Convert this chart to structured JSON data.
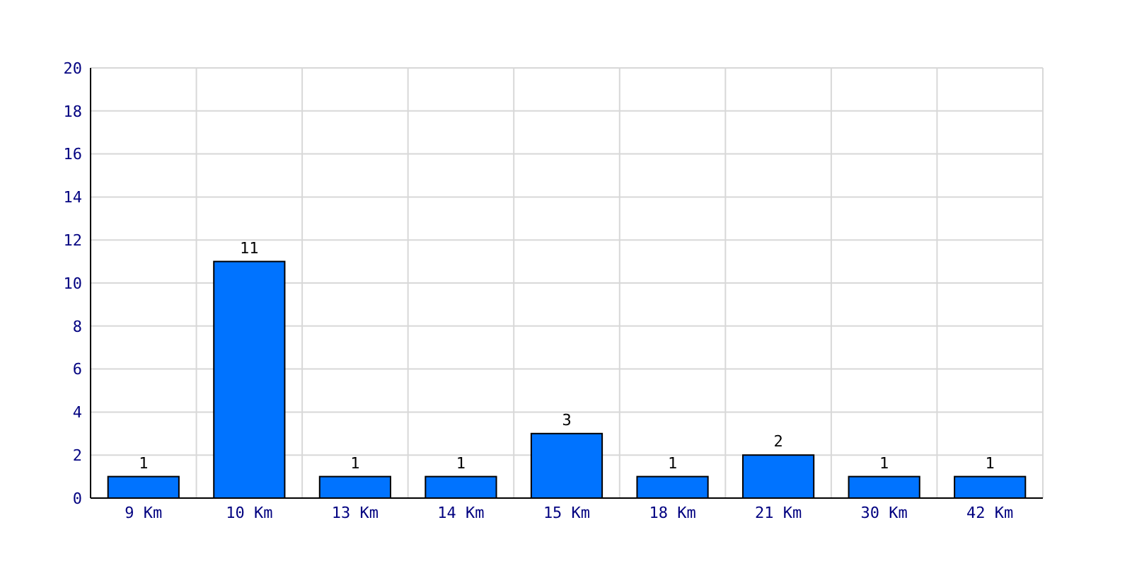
{
  "chart_data": {
    "type": "bar",
    "categories": [
      "9 Km",
      "10 Km",
      "13 Km",
      "14 Km",
      "15 Km",
      "18 Km",
      "21 Km",
      "30 Km",
      "42 Km"
    ],
    "values": [
      1,
      11,
      1,
      1,
      3,
      1,
      2,
      1,
      1
    ],
    "color": "#0073ff",
    "ylim": [
      0,
      20
    ],
    "yticks": [
      0,
      2,
      4,
      6,
      8,
      10,
      12,
      14,
      16,
      18,
      20
    ],
    "grid": true,
    "data_labels": true
  }
}
